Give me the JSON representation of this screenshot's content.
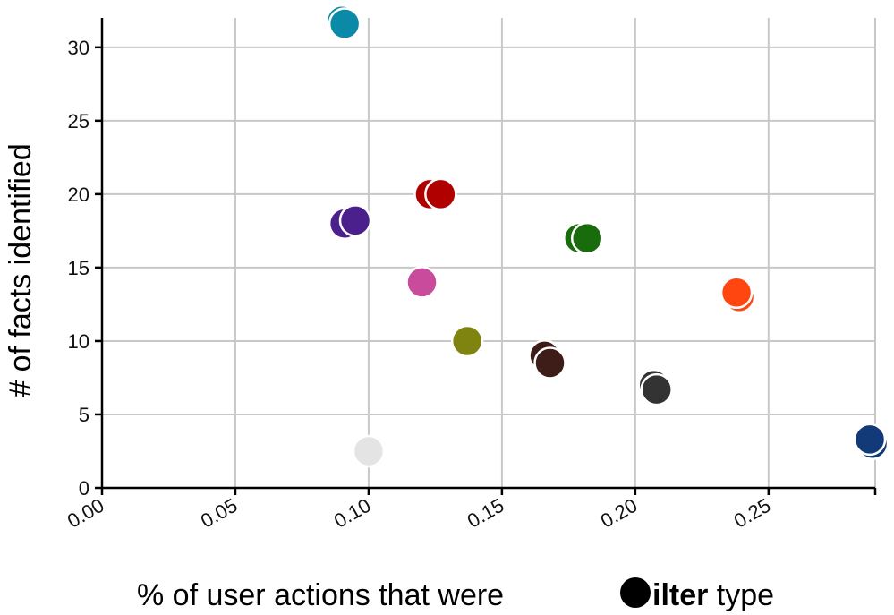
{
  "chart_data": {
    "type": "scatter",
    "xlabel": {
      "prefix": "% of user actions that were ",
      "marker_color": "#000000",
      "emphasis": "ilter",
      "suffix": " type"
    },
    "ylabel": "# of facts identified",
    "xlim": [
      0,
      0.29
    ],
    "ylim": [
      0,
      32
    ],
    "x_ticks": [
      "0.00",
      "0.05",
      "0.10",
      "0.15",
      "0.20",
      "0.25"
    ],
    "y_ticks": [
      "0",
      "5",
      "10",
      "15",
      "20",
      "25",
      "30"
    ],
    "grid": true,
    "points": [
      {
        "x": 0.09,
        "y": 31.8,
        "color": "#0a8aa6"
      },
      {
        "x": 0.091,
        "y": 31.6,
        "color": "#0a8aa6"
      },
      {
        "x": 0.091,
        "y": 18.0,
        "color": "#4b1f8c"
      },
      {
        "x": 0.095,
        "y": 18.2,
        "color": "#4b1f8c"
      },
      {
        "x": 0.123,
        "y": 20.0,
        "color": "#b00000"
      },
      {
        "x": 0.127,
        "y": 20.0,
        "color": "#b00000"
      },
      {
        "x": 0.12,
        "y": 14.0,
        "color": "#c94c9c"
      },
      {
        "x": 0.179,
        "y": 17.0,
        "color": "#1a6b0d"
      },
      {
        "x": 0.182,
        "y": 17.0,
        "color": "#1a6b0d"
      },
      {
        "x": 0.137,
        "y": 10.0,
        "color": "#7f830f"
      },
      {
        "x": 0.166,
        "y": 9.0,
        "color": "#3e1c17"
      },
      {
        "x": 0.168,
        "y": 8.5,
        "color": "#3e1c17"
      },
      {
        "x": 0.207,
        "y": 7.0,
        "color": "#333333"
      },
      {
        "x": 0.208,
        "y": 6.7,
        "color": "#333333"
      },
      {
        "x": 0.239,
        "y": 13.0,
        "color": "#ff4510"
      },
      {
        "x": 0.238,
        "y": 13.3,
        "color": "#ff4510"
      },
      {
        "x": 0.289,
        "y": 3.0,
        "color": "#123a78"
      },
      {
        "x": 0.288,
        "y": 3.3,
        "color": "#123a78"
      },
      {
        "x": 0.1,
        "y": 2.5,
        "color": "#e4e4e4"
      }
    ]
  }
}
